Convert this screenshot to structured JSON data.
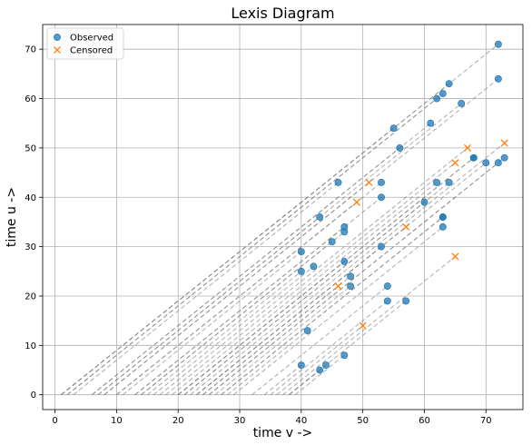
{
  "chart_data": {
    "type": "scatter",
    "title": "Lexis Diagram",
    "xlabel": "time v ->",
    "ylabel": "time u ->",
    "xlim": [
      -2,
      76
    ],
    "ylim": [
      -3,
      75
    ],
    "xticks": [
      0,
      10,
      20,
      30,
      40,
      50,
      60,
      70
    ],
    "yticks": [
      0,
      10,
      20,
      30,
      40,
      50,
      60,
      70
    ],
    "grid": true,
    "legend": {
      "placement": "top-left",
      "entries": [
        "Observed",
        "Censored"
      ]
    },
    "colors": {
      "observed": "#1f77b4",
      "censored": "#ff7f0e",
      "lifeline": "#808080",
      "grid": "#b0b0b0"
    },
    "series": [
      {
        "name": "Observed",
        "marker": "circle",
        "points": [
          [
            40,
            6
          ],
          [
            43,
            5
          ],
          [
            44,
            6
          ],
          [
            47,
            8
          ],
          [
            41,
            13
          ],
          [
            54,
            19
          ],
          [
            57,
            19
          ],
          [
            48,
            22
          ],
          [
            54,
            22
          ],
          [
            40,
            25
          ],
          [
            42,
            26
          ],
          [
            48,
            24
          ],
          [
            47,
            27
          ],
          [
            40,
            29
          ],
          [
            45,
            31
          ],
          [
            47,
            33
          ],
          [
            47,
            34
          ],
          [
            43,
            36
          ],
          [
            53,
            30
          ],
          [
            63,
            34
          ],
          [
            63,
            36
          ],
          [
            63,
            36
          ],
          [
            60,
            39
          ],
          [
            53,
            40
          ],
          [
            46,
            43
          ],
          [
            53,
            43
          ],
          [
            62,
            43
          ],
          [
            64,
            43
          ],
          [
            70,
            47
          ],
          [
            72,
            47
          ],
          [
            73,
            48
          ],
          [
            68,
            48
          ],
          [
            68,
            48
          ],
          [
            56,
            50
          ],
          [
            55,
            54
          ],
          [
            61,
            55
          ],
          [
            62,
            60
          ],
          [
            63,
            61
          ],
          [
            64,
            63
          ],
          [
            66,
            59
          ],
          [
            72,
            64
          ],
          [
            72,
            71
          ]
        ]
      },
      {
        "name": "Censored",
        "marker": "x",
        "points": [
          [
            46,
            22
          ],
          [
            50,
            14
          ],
          [
            57,
            34
          ],
          [
            65,
            28
          ],
          [
            49,
            39
          ],
          [
            51,
            43
          ],
          [
            65,
            47
          ],
          [
            67,
            50
          ],
          [
            73,
            51
          ]
        ]
      }
    ]
  }
}
